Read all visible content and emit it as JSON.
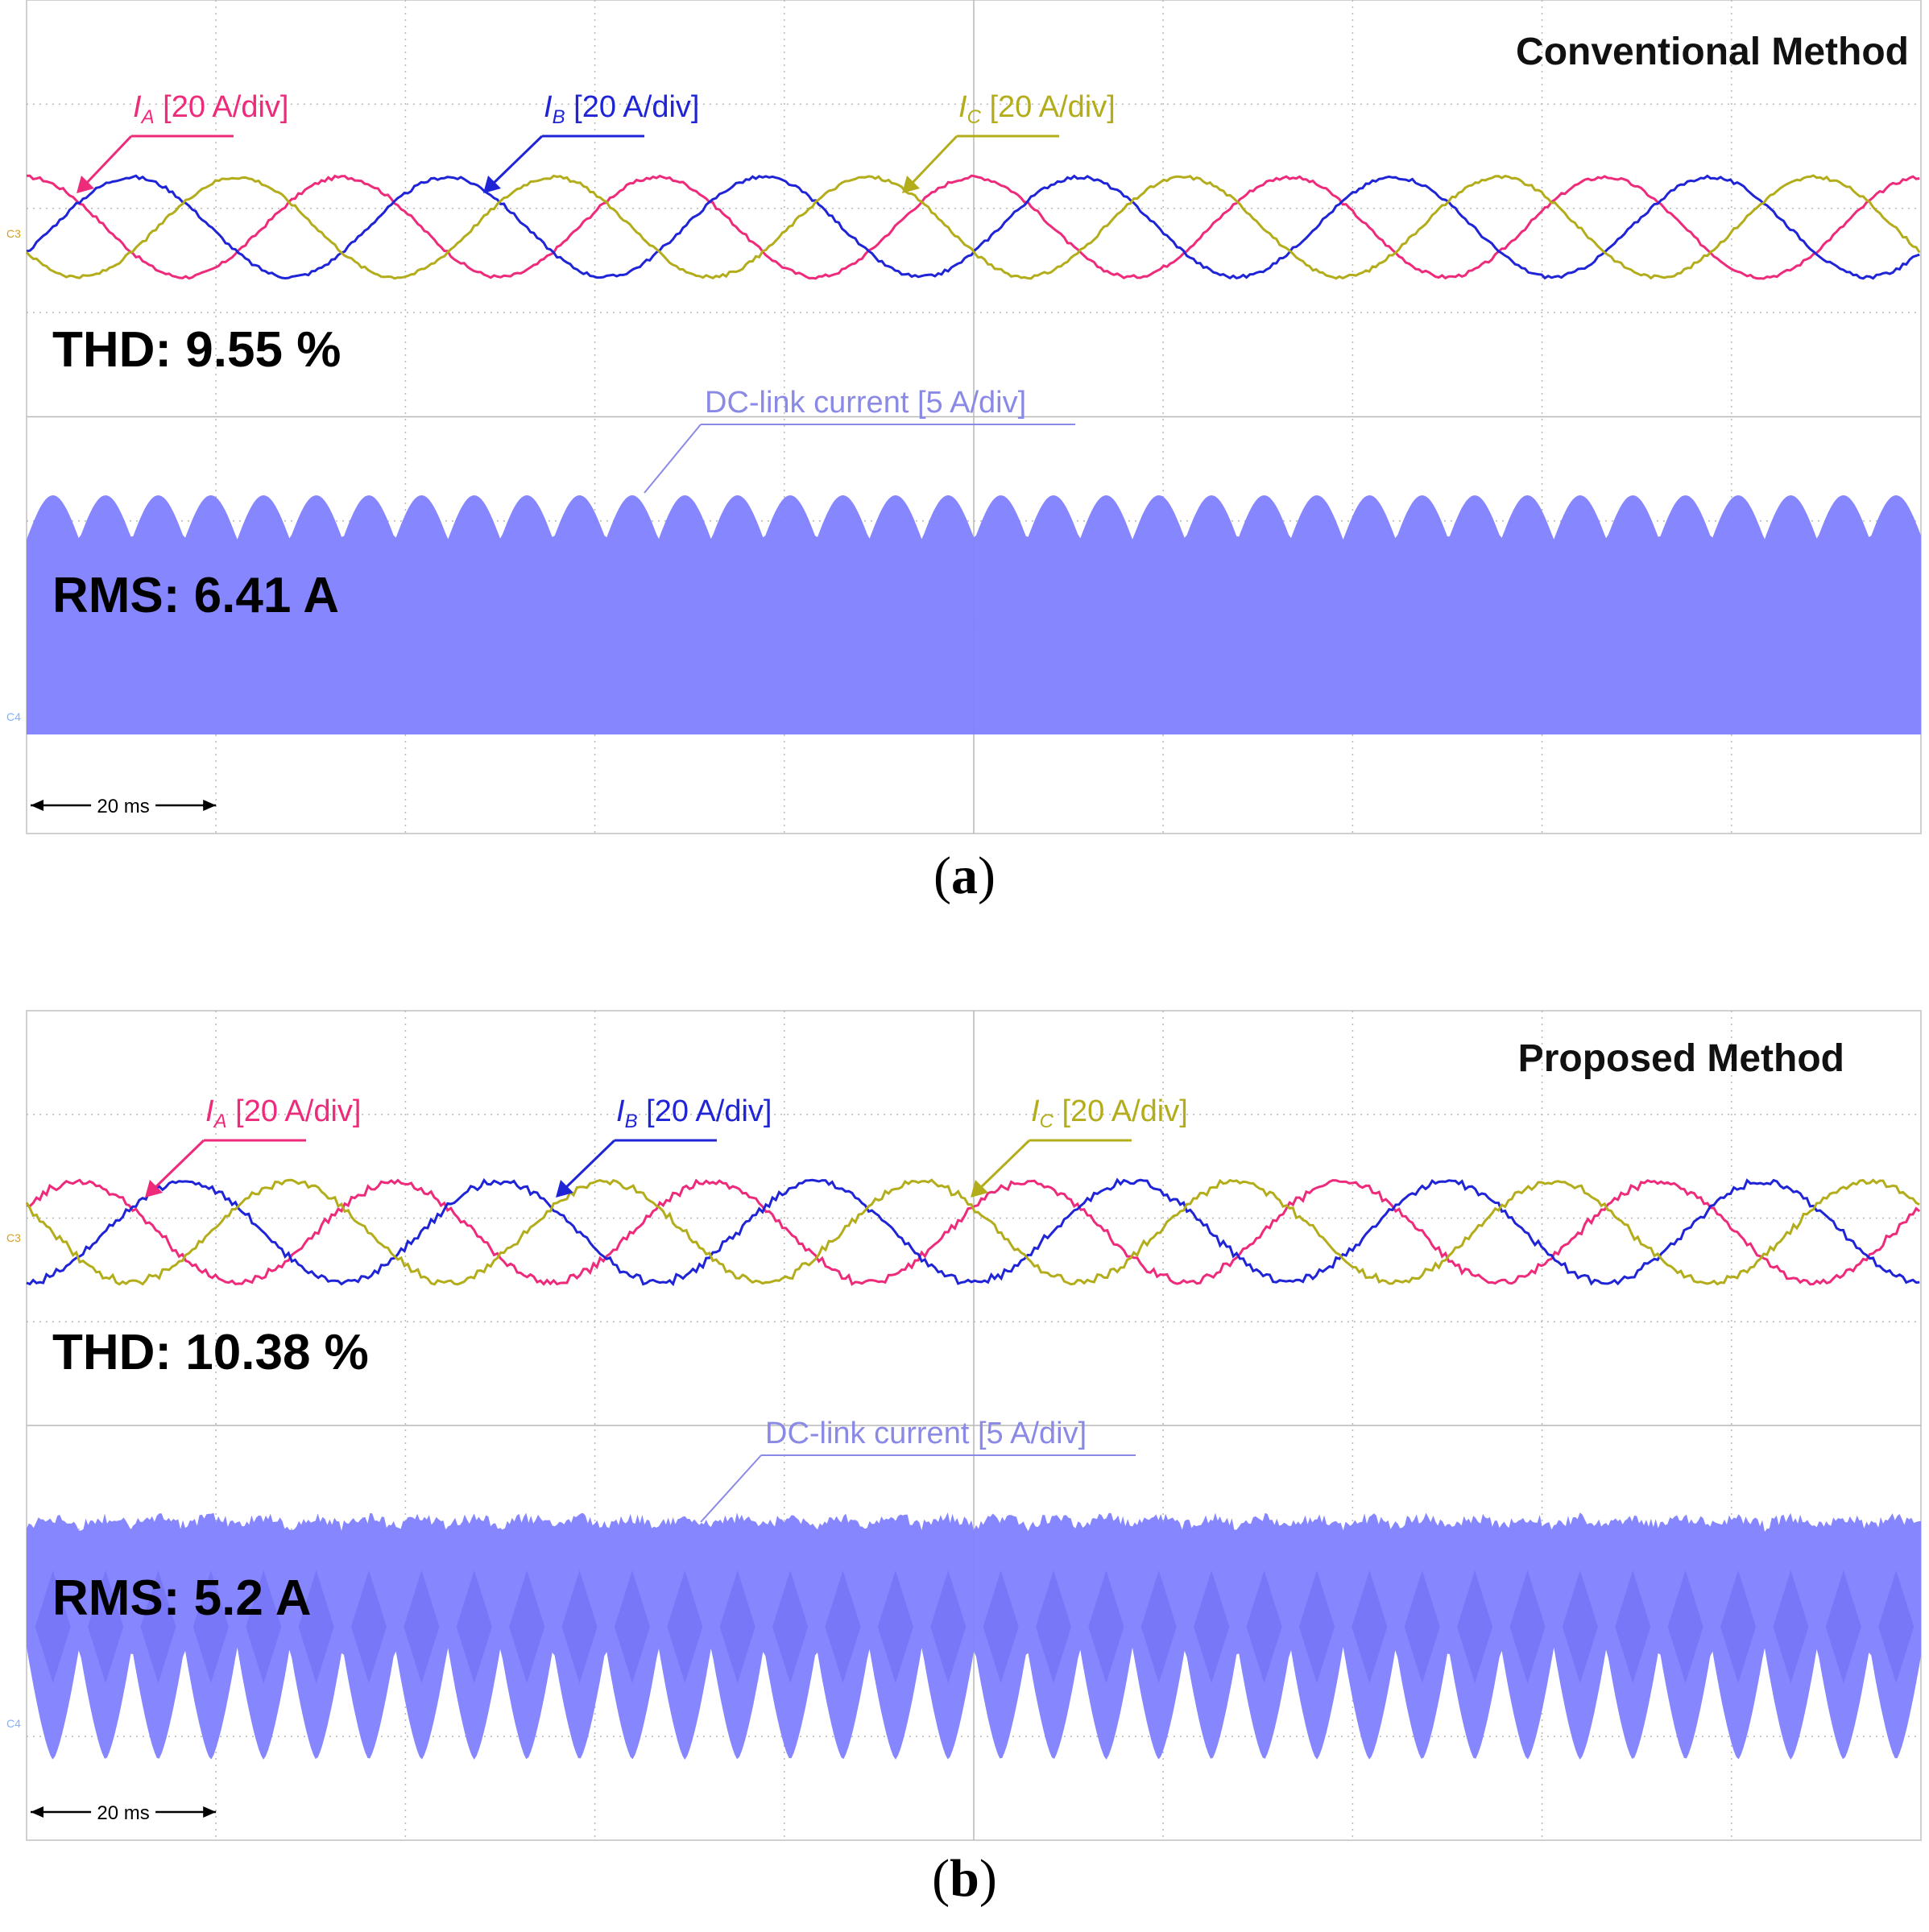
{
  "colors": {
    "ia": "#ee2a7b",
    "ib": "#1f24d6",
    "ic": "#b3ad1c",
    "dc": "#8080ff",
    "dc_label": "#8a8ae6",
    "grid": "#b8b8b8",
    "frame": "#888888",
    "channel_c3": "#d4a020",
    "channel_c4": "#7fb2ff"
  },
  "chart_data": [
    {
      "type": "line",
      "panel": "(a)",
      "panel_letter": "a",
      "title": "Conventional Method",
      "time_per_div": "20 ms",
      "x_range_ms": [
        0,
        200
      ],
      "divisions": {
        "horizontal": 10,
        "vertical": 8
      },
      "series": [
        {
          "name": "IA",
          "label_letter": "I",
          "label_sub": "A",
          "label_rest": " [20 A/div]",
          "scale": "20 A/div",
          "period_ms": 33.33,
          "phase_deg": 0,
          "ripple": "low"
        },
        {
          "name": "IB",
          "label_letter": "I",
          "label_sub": "B",
          "label_rest": " [20 A/div]",
          "scale": "20 A/div",
          "period_ms": 33.33,
          "phase_deg": -120,
          "ripple": "low"
        },
        {
          "name": "IC",
          "label_letter": "I",
          "label_sub": "C",
          "label_rest": " [20 A/div]",
          "scale": "20 A/div",
          "period_ms": 33.33,
          "phase_deg": 120,
          "ripple": "low"
        },
        {
          "name": "DC-link current",
          "label": "DC-link current [5 A/div]",
          "scale": "5 A/div",
          "envelope": "band",
          "envelope_period_ms": 5.56
        }
      ],
      "channels": [
        "C3",
        "C4"
      ],
      "annotations": {
        "thd": "THD: 9.55 %",
        "rms": "RMS: 6.41 A"
      }
    },
    {
      "type": "line",
      "panel": "(b)",
      "panel_letter": "b",
      "title": "Proposed Method",
      "time_per_div": "20 ms",
      "x_range_ms": [
        0,
        200
      ],
      "divisions": {
        "horizontal": 10,
        "vertical": 8
      },
      "series": [
        {
          "name": "IA",
          "label_letter": "I",
          "label_sub": "A",
          "label_rest": " [20 A/div]",
          "scale": "20 A/div",
          "period_ms": 33.33,
          "phase_deg": -60,
          "ripple": "stepped"
        },
        {
          "name": "IB",
          "label_letter": "I",
          "label_sub": "B",
          "label_rest": " [20 A/div]",
          "scale": "20 A/div",
          "period_ms": 33.33,
          "phase_deg": -180,
          "ripple": "stepped"
        },
        {
          "name": "IC",
          "label_letter": "I",
          "label_sub": "C",
          "label_rest": " [20 A/div]",
          "scale": "20 A/div",
          "period_ms": 33.33,
          "phase_deg": 60,
          "ripple": "stepped"
        },
        {
          "name": "DC-link current",
          "label": "DC-link current [5 A/div]",
          "scale": "5 A/div",
          "envelope": "notched",
          "envelope_period_ms": 5.56
        }
      ],
      "channels": [
        "C3",
        "C4"
      ],
      "annotations": {
        "thd": "THD: 10.38 %",
        "rms": "RMS: 5.2 A"
      }
    }
  ]
}
